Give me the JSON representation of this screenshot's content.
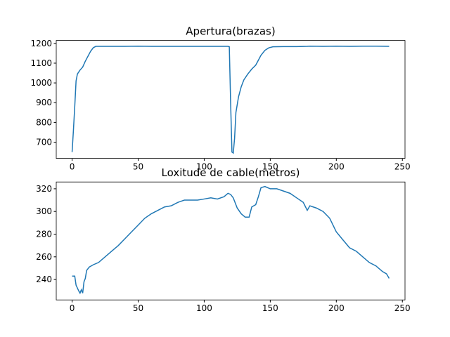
{
  "chart_data": [
    {
      "type": "line",
      "title": "Apertura(brazas)",
      "x": [
        0,
        1,
        2,
        3,
        4,
        6,
        8,
        10,
        12,
        14,
        16,
        18,
        20,
        30,
        40,
        50,
        60,
        70,
        80,
        90,
        100,
        110,
        118,
        119,
        120,
        121,
        122,
        123,
        124,
        126,
        128,
        130,
        133,
        136,
        139,
        141,
        143,
        146,
        149,
        152,
        160,
        170,
        178,
        180,
        190,
        200,
        210,
        220,
        230,
        240
      ],
      "series": [
        {
          "name": "Apertura",
          "color": "#1f77b4",
          "values": [
            650,
            760,
            880,
            1010,
            1045,
            1065,
            1080,
            1110,
            1135,
            1160,
            1178,
            1185,
            1185,
            1185,
            1185,
            1186,
            1185,
            1185,
            1185,
            1185,
            1185,
            1185,
            1185,
            1183,
            900,
            650,
            645,
            720,
            850,
            930,
            980,
            1015,
            1045,
            1070,
            1090,
            1115,
            1140,
            1165,
            1178,
            1183,
            1184,
            1184,
            1185,
            1186,
            1185,
            1186,
            1185,
            1186,
            1186,
            1185
          ]
        }
      ],
      "xlim": [
        -12,
        252
      ],
      "xticks": [
        0,
        50,
        100,
        150,
        200,
        250
      ],
      "ylim": [
        618,
        1215
      ],
      "yticks": [
        700,
        800,
        900,
        1000,
        1100,
        1200
      ]
    },
    {
      "type": "line",
      "title": "Loxitude de cable(metros)",
      "x": [
        0,
        2,
        3,
        5,
        6,
        7,
        8,
        9,
        10,
        11,
        13,
        16,
        20,
        25,
        30,
        35,
        40,
        45,
        50,
        55,
        60,
        65,
        70,
        75,
        80,
        85,
        90,
        95,
        100,
        105,
        110,
        115,
        118,
        120,
        122,
        125,
        128,
        131,
        134,
        136,
        139,
        141,
        143,
        146,
        150,
        155,
        160,
        165,
        170,
        175,
        178,
        180,
        185,
        190,
        195,
        200,
        205,
        210,
        215,
        220,
        225,
        230,
        235,
        238,
        240
      ],
      "series": [
        {
          "name": "Loxitude",
          "color": "#1f77b4",
          "values": [
            243,
            243,
            235,
            230,
            228,
            231,
            228,
            238,
            241,
            248,
            251,
            253,
            255,
            260,
            265,
            270,
            276,
            282,
            288,
            294,
            298,
            301,
            304,
            305,
            308,
            310,
            310,
            310,
            311,
            312,
            311,
            313,
            316,
            315,
            312,
            303,
            298,
            295,
            295,
            304,
            306,
            313,
            321,
            322,
            320,
            320,
            318,
            316,
            312,
            308,
            301,
            305,
            303,
            300,
            294,
            282,
            275,
            268,
            265,
            260,
            255,
            252,
            247,
            245,
            241
          ]
        }
      ],
      "xlim": [
        -12,
        252
      ],
      "xticks": [
        0,
        50,
        100,
        150,
        200,
        250
      ],
      "ylim": [
        222,
        326
      ],
      "yticks": [
        240,
        260,
        280,
        300,
        320
      ]
    }
  ]
}
